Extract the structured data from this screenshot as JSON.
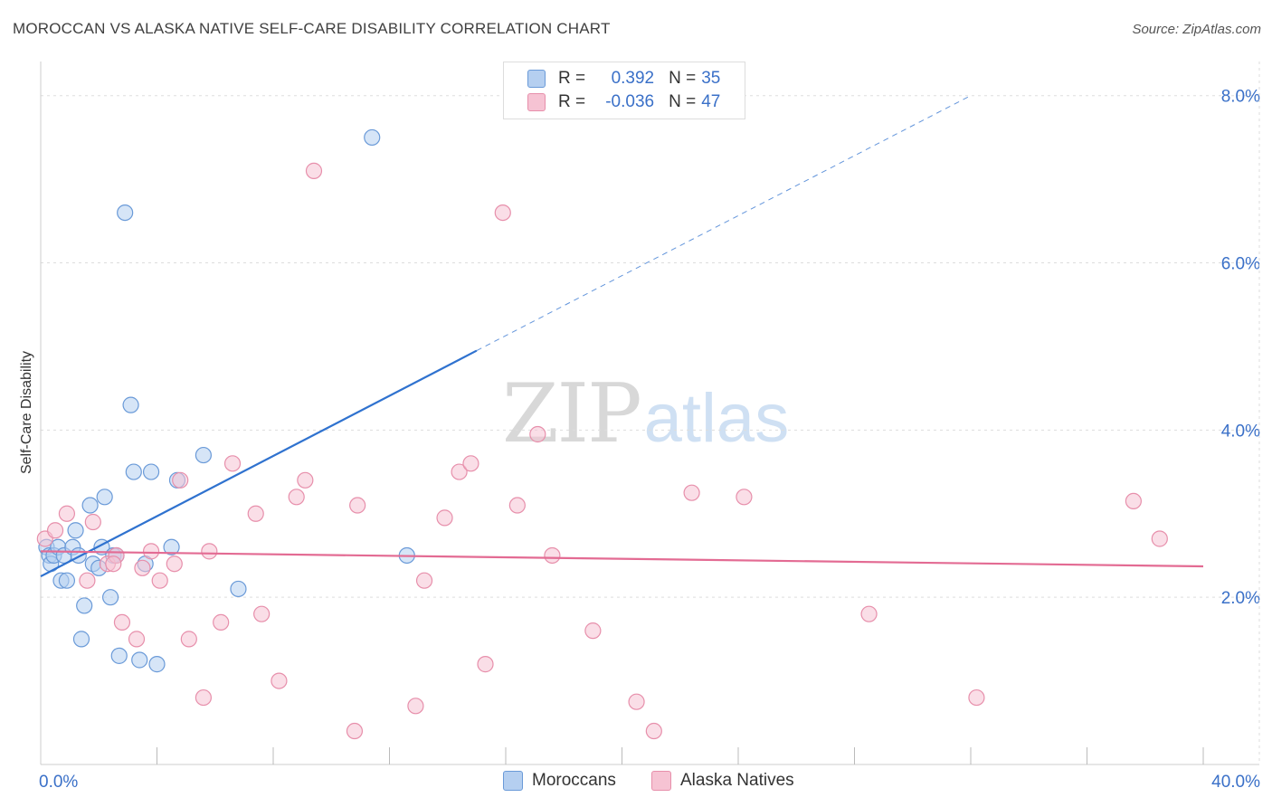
{
  "header": {
    "title": "MOROCCAN VS ALASKA NATIVE SELF-CARE DISABILITY CORRELATION CHART",
    "source": "Source: ZipAtlas.com"
  },
  "watermark": {
    "zip": "ZIP",
    "atlas": "atlas"
  },
  "legend": {
    "rows": [
      {
        "r_label": "R =",
        "r_value": "0.392",
        "n_label": "N =",
        "n_value": "35"
      },
      {
        "r_label": "R =",
        "r_value": "-0.036",
        "n_label": "N =",
        "n_value": "47"
      }
    ]
  },
  "colors": {
    "blue_fill": "#b5cff0",
    "blue_stroke": "#6a9ad8",
    "blue_line": "#2f72cf",
    "pink_fill": "#f6c3d3",
    "pink_stroke": "#e78fab",
    "pink_line": "#e36b93",
    "grid": "#dddddd",
    "tick_text": "#3a70c8"
  },
  "chart_data": {
    "type": "scatter",
    "title": "MOROCCAN VS ALASKA NATIVE SELF-CARE DISABILITY CORRELATION CHART",
    "xlabel": "",
    "ylabel": "Self-Care Disability",
    "xlim": [
      0,
      40
    ],
    "ylim": [
      0,
      8.3
    ],
    "x_tick_labels": [
      {
        "value": 0,
        "label": "0.0%"
      },
      {
        "value": 40,
        "label": "40.0%"
      }
    ],
    "y_tick_labels": [
      {
        "value": 2,
        "label": "2.0%"
      },
      {
        "value": 4,
        "label": "4.0%"
      },
      {
        "value": 6,
        "label": "6.0%"
      },
      {
        "value": 8,
        "label": "8.0%"
      }
    ],
    "series": [
      {
        "name": "Moroccans",
        "color": "#b5cff0",
        "points": [
          [
            0.2,
            2.6
          ],
          [
            0.3,
            2.5
          ],
          [
            0.35,
            2.4
          ],
          [
            0.45,
            2.5
          ],
          [
            0.6,
            2.6
          ],
          [
            0.7,
            2.2
          ],
          [
            0.8,
            2.5
          ],
          [
            0.9,
            2.2
          ],
          [
            1.1,
            2.6
          ],
          [
            1.2,
            2.8
          ],
          [
            1.4,
            1.5
          ],
          [
            1.5,
            1.9
          ],
          [
            1.7,
            3.1
          ],
          [
            1.8,
            2.4
          ],
          [
            2.0,
            2.35
          ],
          [
            2.1,
            2.6
          ],
          [
            2.2,
            3.2
          ],
          [
            2.4,
            2.0
          ],
          [
            2.5,
            2.5
          ],
          [
            2.6,
            2.5
          ],
          [
            2.7,
            1.3
          ],
          [
            2.9,
            6.6
          ],
          [
            3.1,
            4.3
          ],
          [
            3.2,
            3.5
          ],
          [
            3.4,
            1.25
          ],
          [
            3.6,
            2.4
          ],
          [
            3.8,
            3.5
          ],
          [
            4.0,
            1.2
          ],
          [
            4.5,
            2.6
          ],
          [
            4.7,
            3.4
          ],
          [
            5.6,
            3.7
          ],
          [
            6.8,
            2.1
          ],
          [
            11.4,
            7.5
          ],
          [
            12.6,
            2.5
          ],
          [
            1.3,
            2.5
          ]
        ],
        "trend": {
          "x": [
            0,
            15
          ],
          "y": [
            2.25,
            4.95
          ],
          "dashed_to": [
            32,
            8.0
          ]
        }
      },
      {
        "name": "Alaska Natives",
        "color": "#f6c3d3",
        "points": [
          [
            0.15,
            2.7
          ],
          [
            0.5,
            2.8
          ],
          [
            0.9,
            3.0
          ],
          [
            1.6,
            2.2
          ],
          [
            1.8,
            2.9
          ],
          [
            2.3,
            2.4
          ],
          [
            2.6,
            2.5
          ],
          [
            2.8,
            1.7
          ],
          [
            3.3,
            1.5
          ],
          [
            3.5,
            2.35
          ],
          [
            3.8,
            2.55
          ],
          [
            4.1,
            2.2
          ],
          [
            4.6,
            2.4
          ],
          [
            4.8,
            3.4
          ],
          [
            5.1,
            1.5
          ],
          [
            5.6,
            0.8
          ],
          [
            5.8,
            2.55
          ],
          [
            6.2,
            1.7
          ],
          [
            6.6,
            3.6
          ],
          [
            7.4,
            3.0
          ],
          [
            7.6,
            1.8
          ],
          [
            8.2,
            1.0
          ],
          [
            8.8,
            3.2
          ],
          [
            9.1,
            3.4
          ],
          [
            9.4,
            7.1
          ],
          [
            10.8,
            0.4
          ],
          [
            10.9,
            3.1
          ],
          [
            12.9,
            0.7
          ],
          [
            13.2,
            2.2
          ],
          [
            13.9,
            2.95
          ],
          [
            14.4,
            3.5
          ],
          [
            14.8,
            3.6
          ],
          [
            15.3,
            1.2
          ],
          [
            15.9,
            6.6
          ],
          [
            16.4,
            3.1
          ],
          [
            17.1,
            3.95
          ],
          [
            17.6,
            2.5
          ],
          [
            19.0,
            1.6
          ],
          [
            20.5,
            0.75
          ],
          [
            21.1,
            0.4
          ],
          [
            22.4,
            3.25
          ],
          [
            24.2,
            3.2
          ],
          [
            28.5,
            1.8
          ],
          [
            32.2,
            0.8
          ],
          [
            37.6,
            3.15
          ],
          [
            38.5,
            2.7
          ],
          [
            2.5,
            2.4
          ]
        ],
        "trend": {
          "x": [
            0,
            40
          ],
          "y": [
            2.55,
            2.37
          ]
        }
      }
    ]
  }
}
